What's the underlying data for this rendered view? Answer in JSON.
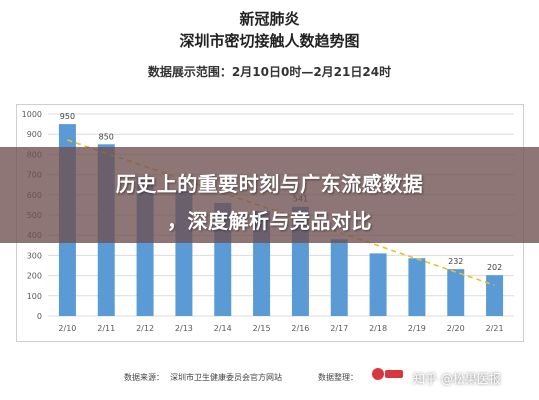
{
  "header": {
    "title_line1": "新冠肺炎",
    "title_line2": "深圳市密切接触人数趋势图",
    "subtitle": "数据展示范围：2月10日0时—2月21日24时"
  },
  "banner": {
    "line1": "历史上的重要时刻与广东流感数据",
    "line2": "，深度解析与竞品对比"
  },
  "footer": {
    "source_label": "数据来源：",
    "source_value": "深圳市卫生健康委员会官方网站",
    "produced_label": "数据整理：",
    "logo_text": "松果医报",
    "watermark": "知乎 @松果医报"
  },
  "colors": {
    "bar": "#5b9bd5",
    "trend": "#e6c229",
    "grid": "#dcdcdc",
    "axis_text": "#595959",
    "label_text": "#404040",
    "logo_red": "#d9363e"
  },
  "chart_data": {
    "type": "bar",
    "categories": [
      "2/10",
      "2/11",
      "2/12",
      "2/13",
      "2/14",
      "2/15",
      "2/16",
      "2/17",
      "2/18",
      "2/19",
      "2/20",
      "2/21"
    ],
    "values": [
      950,
      850,
      690,
      620,
      560,
      520,
      541,
      380,
      310,
      286,
      232,
      202
    ],
    "data_labels": [
      "950",
      "850",
      "",
      "",
      "",
      "",
      "541",
      "",
      "",
      "",
      "232",
      "202"
    ],
    "trendline": true,
    "ylim": [
      0,
      1000
    ],
    "yticks": [
      "0",
      "100",
      "200",
      "300",
      "400",
      "500",
      "600",
      "700",
      "800",
      "900",
      "1000"
    ],
    "grid": true,
    "title": "深圳市密切接触人数趋势图",
    "xlabel": "",
    "ylabel": ""
  }
}
